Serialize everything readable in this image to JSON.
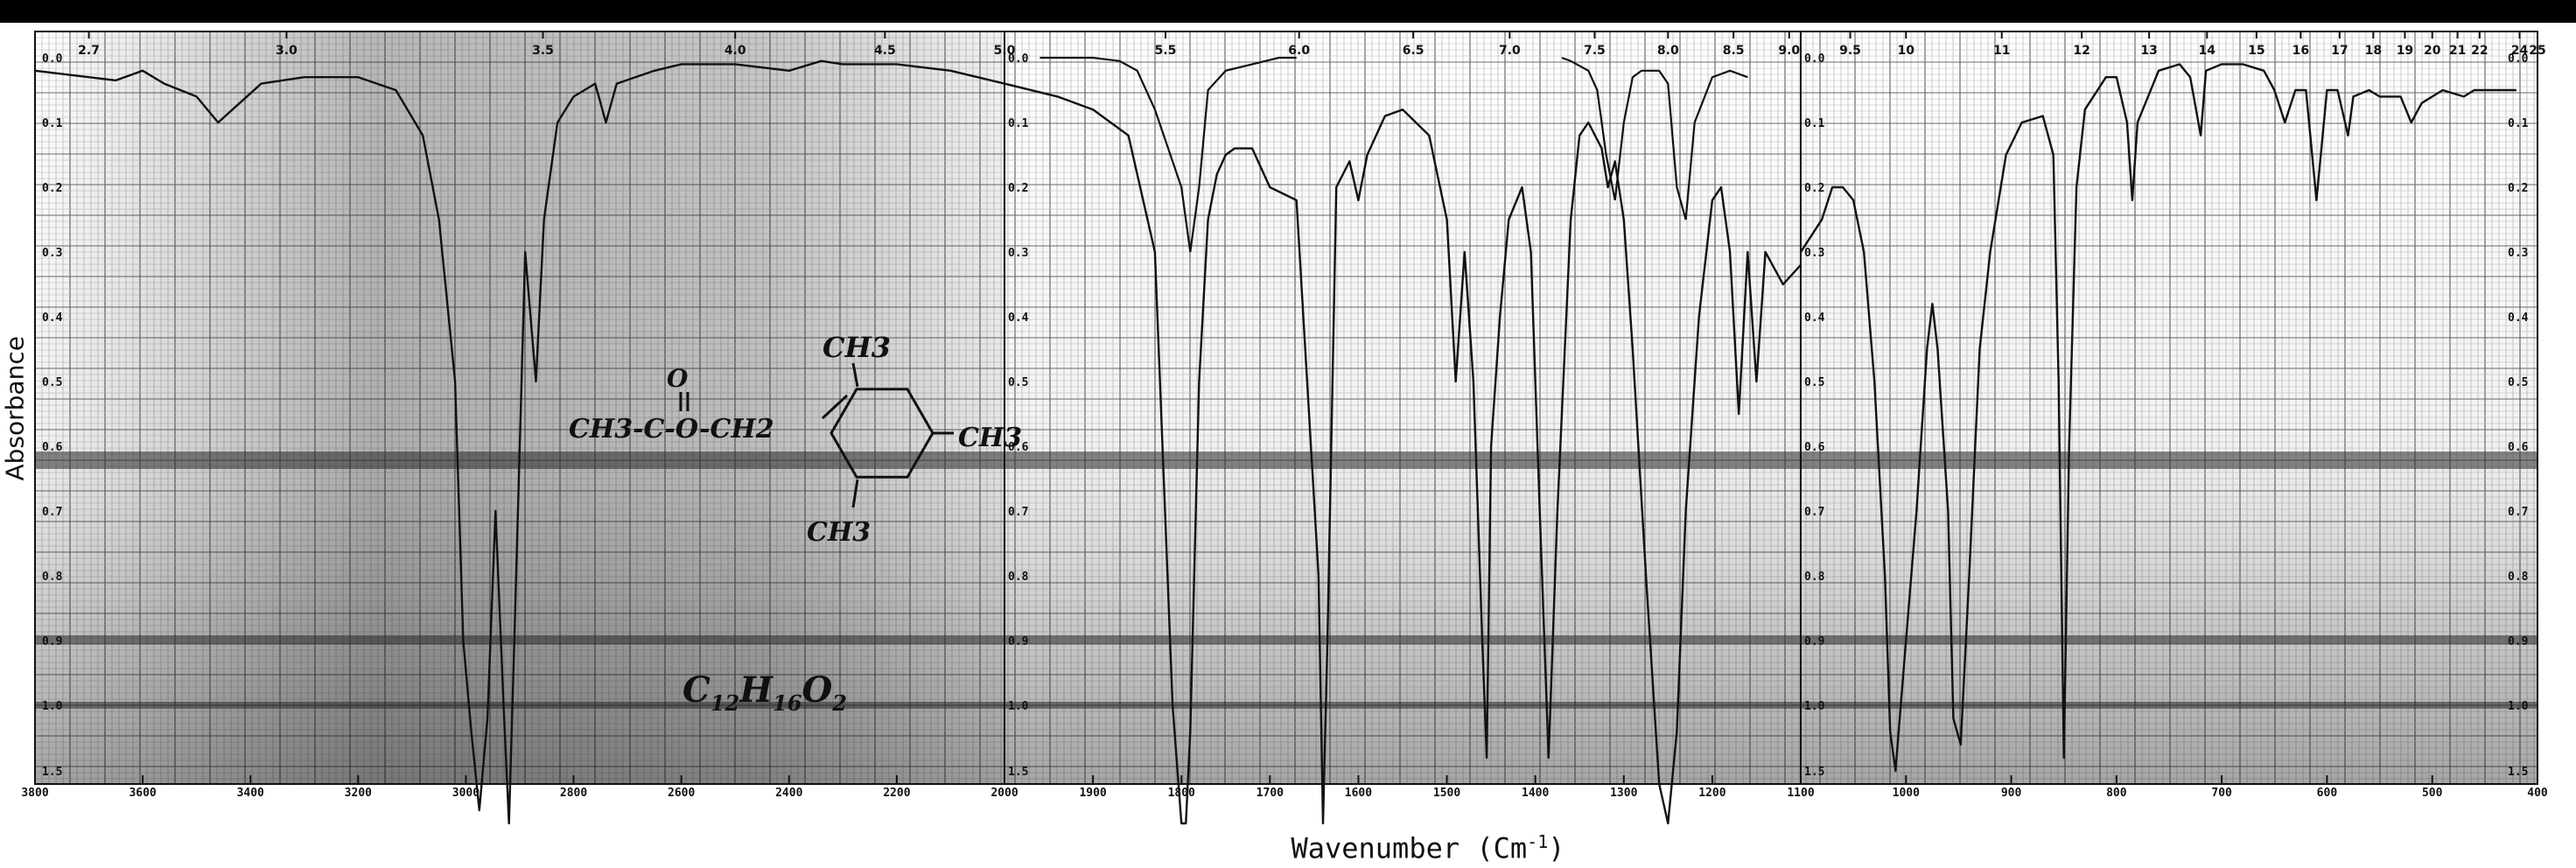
{
  "chart_data": {
    "type": "line",
    "title": "",
    "xlabel": "Wavenumber (Cm",
    "xlabel_superscript": "-1",
    "xlabel_close": ")",
    "ylabel": "Absorbance",
    "x_reversed": true,
    "panels": [
      {
        "xlim": [
          3800,
          2000
        ],
        "bottom_ticks": [
          3800,
          3600,
          3400,
          3200,
          3000,
          2800,
          2600,
          2400,
          2200,
          2000
        ],
        "top_ticks": [
          {
            "label": "2.7",
            "x": 3700
          },
          {
            "label": "3.0",
            "x": 3333
          },
          {
            "label": "3.5",
            "x": 2857
          },
          {
            "label": "4.0",
            "x": 2500
          },
          {
            "label": "4.5",
            "x": 2222
          },
          {
            "label": "5.0",
            "x": 2000
          }
        ]
      },
      {
        "xlim": [
          2000,
          1100
        ],
        "bottom_ticks": [
          1900,
          1800,
          1700,
          1600,
          1500,
          1400,
          1300,
          1200
        ],
        "top_ticks": [
          {
            "label": "5.5",
            "x": 1818
          },
          {
            "label": "6.0",
            "x": 1667
          },
          {
            "label": "6.5",
            "x": 1538
          },
          {
            "label": "7.0",
            "x": 1429
          },
          {
            "label": "7.5",
            "x": 1333
          },
          {
            "label": "8.0",
            "x": 1250
          },
          {
            "label": "8.5",
            "x": 1176
          }
        ]
      },
      {
        "xlim": [
          1100,
          400
        ],
        "bottom_ticks": [
          1100,
          1000,
          900,
          800,
          700,
          600,
          500,
          400
        ],
        "tick_labels_override": {
          "500": "500",
          "400": "400"
        },
        "top_ticks": [
          {
            "label": "9.0",
            "x": 1111
          },
          {
            "label": "9.5",
            "x": 1053
          },
          {
            "label": "10",
            "x": 1000
          },
          {
            "label": "11",
            "x": 909
          },
          {
            "label": "12",
            "x": 833
          },
          {
            "label": "13",
            "x": 769
          },
          {
            "label": "14",
            "x": 714
          },
          {
            "label": "15",
            "x": 667
          },
          {
            "label": "16",
            "x": 625
          },
          {
            "label": "17",
            "x": 588
          },
          {
            "label": "18",
            "x": 556
          },
          {
            "label": "19",
            "x": 526
          },
          {
            "label": "20",
            "x": 500
          },
          {
            "label": "21",
            "x": 476
          },
          {
            "label": "22",
            "x": 455
          },
          {
            "label": "24",
            "x": 417
          },
          {
            "label": "25",
            "x": 400
          }
        ]
      }
    ],
    "y_ticks": [
      "0.0",
      "0.1",
      "0.2",
      "0.3",
      "0.4",
      "0.5",
      "0.6",
      "0.7",
      "0.8",
      "0.9",
      "1.0",
      "1.5"
    ],
    "y_values": [
      0.0,
      0.1,
      0.2,
      0.3,
      0.4,
      0.5,
      0.6,
      0.7,
      0.8,
      0.9,
      1.0,
      1.5
    ],
    "grid": true,
    "series": [
      {
        "values": [
          [
            3800,
            0.02
          ],
          [
            3700,
            0.03
          ],
          [
            3650,
            0.035
          ],
          [
            3600,
            0.02
          ],
          [
            3560,
            0.04
          ],
          [
            3500,
            0.06
          ],
          [
            3460,
            0.1
          ],
          [
            3420,
            0.07
          ],
          [
            3380,
            0.04
          ],
          [
            3300,
            0.03
          ],
          [
            3200,
            0.03
          ],
          [
            3130,
            0.05
          ],
          [
            3080,
            0.12
          ],
          [
            3050,
            0.25
          ],
          [
            3020,
            0.5
          ],
          [
            3005,
            0.9
          ],
          [
            2990,
            1.2
          ],
          [
            2975,
            1.8
          ],
          [
            2960,
            1.1
          ],
          [
            2945,
            0.7
          ],
          [
            2930,
            1.0
          ],
          [
            2920,
            1.9
          ],
          [
            2910,
            0.9
          ],
          [
            2890,
            0.3
          ],
          [
            2870,
            0.5
          ],
          [
            2855,
            0.25
          ],
          [
            2830,
            0.1
          ],
          [
            2800,
            0.06
          ],
          [
            2760,
            0.04
          ],
          [
            2740,
            0.1
          ],
          [
            2720,
            0.04
          ],
          [
            2650,
            0.02
          ],
          [
            2600,
            0.01
          ],
          [
            2500,
            0.01
          ],
          [
            2400,
            0.02
          ],
          [
            2340,
            0.005
          ],
          [
            2300,
            0.01
          ],
          [
            2200,
            0.01
          ],
          [
            2100,
            0.02
          ],
          [
            2000,
            0.04
          ]
        ]
      },
      {
        "values": [
          [
            2000,
            0.04
          ],
          [
            1940,
            0.06
          ],
          [
            1900,
            0.08
          ],
          [
            1860,
            0.12
          ],
          [
            1830,
            0.3
          ],
          [
            1810,
            1.0
          ],
          [
            1800,
            1.9
          ],
          [
            1795,
            1.9
          ],
          [
            1790,
            1.2
          ],
          [
            1780,
            0.5
          ],
          [
            1770,
            0.25
          ],
          [
            1760,
            0.18
          ],
          [
            1750,
            0.15
          ],
          [
            1740,
            0.14
          ],
          [
            1720,
            0.14
          ],
          [
            1700,
            0.2
          ],
          [
            1670,
            0.22
          ],
          [
            1645,
            0.8
          ],
          [
            1640,
            1.9
          ],
          [
            1635,
            0.9
          ],
          [
            1625,
            0.2
          ],
          [
            1610,
            0.16
          ],
          [
            1600,
            0.22
          ],
          [
            1590,
            0.15
          ],
          [
            1570,
            0.09
          ],
          [
            1550,
            0.08
          ],
          [
            1520,
            0.12
          ],
          [
            1500,
            0.25
          ],
          [
            1490,
            0.5
          ],
          [
            1480,
            0.3
          ],
          [
            1470,
            0.5
          ],
          [
            1460,
            0.9
          ],
          [
            1455,
            1.4
          ],
          [
            1450,
            0.6
          ],
          [
            1440,
            0.4
          ],
          [
            1430,
            0.25
          ],
          [
            1415,
            0.2
          ],
          [
            1405,
            0.3
          ],
          [
            1395,
            0.7
          ],
          [
            1385,
            1.4
          ],
          [
            1375,
            0.7
          ],
          [
            1360,
            0.25
          ],
          [
            1350,
            0.12
          ],
          [
            1340,
            0.1
          ],
          [
            1325,
            0.14
          ],
          [
            1318,
            0.2
          ],
          [
            1310,
            0.16
          ],
          [
            1300,
            0.25
          ],
          [
            1290,
            0.45
          ],
          [
            1275,
            0.8
          ],
          [
            1260,
            1.6
          ],
          [
            1250,
            1.9
          ],
          [
            1240,
            1.2
          ],
          [
            1230,
            0.7
          ],
          [
            1215,
            0.4
          ],
          [
            1200,
            0.22
          ],
          [
            1190,
            0.2
          ],
          [
            1180,
            0.3
          ],
          [
            1170,
            0.55
          ],
          [
            1160,
            0.3
          ],
          [
            1150,
            0.5
          ],
          [
            1140,
            0.3
          ],
          [
            1120,
            0.35
          ],
          [
            1100,
            0.32
          ]
        ]
      },
      {
        "values": [
          [
            1100,
            0.3
          ],
          [
            1080,
            0.25
          ],
          [
            1070,
            0.2
          ],
          [
            1060,
            0.2
          ],
          [
            1050,
            0.22
          ],
          [
            1040,
            0.3
          ],
          [
            1030,
            0.5
          ],
          [
            1020,
            0.8
          ],
          [
            1015,
            1.2
          ],
          [
            1010,
            1.5
          ],
          [
            1005,
            1.0
          ],
          [
            990,
            0.7
          ],
          [
            980,
            0.45
          ],
          [
            975,
            0.38
          ],
          [
            970,
            0.45
          ],
          [
            960,
            0.7
          ],
          [
            955,
            1.1
          ],
          [
            948,
            1.3
          ],
          [
            940,
            0.8
          ],
          [
            930,
            0.45
          ],
          [
            920,
            0.3
          ],
          [
            905,
            0.15
          ],
          [
            890,
            0.1
          ],
          [
            870,
            0.09
          ],
          [
            860,
            0.15
          ],
          [
            855,
            0.5
          ],
          [
            850,
            1.4
          ],
          [
            845,
            0.6
          ],
          [
            838,
            0.2
          ],
          [
            830,
            0.08
          ],
          [
            810,
            0.03
          ],
          [
            800,
            0.03
          ],
          [
            790,
            0.1
          ],
          [
            785,
            0.22
          ],
          [
            780,
            0.1
          ],
          [
            760,
            0.02
          ],
          [
            740,
            0.01
          ],
          [
            730,
            0.03
          ],
          [
            720,
            0.12
          ],
          [
            715,
            0.02
          ],
          [
            700,
            0.01
          ],
          [
            680,
            0.01
          ],
          [
            660,
            0.02
          ],
          [
            650,
            0.05
          ],
          [
            640,
            0.1
          ],
          [
            630,
            0.05
          ],
          [
            620,
            0.05
          ],
          [
            610,
            0.22
          ],
          [
            600,
            0.05
          ],
          [
            590,
            0.05
          ],
          [
            580,
            0.12
          ],
          [
            575,
            0.06
          ],
          [
            560,
            0.05
          ],
          [
            550,
            0.06
          ],
          [
            530,
            0.06
          ],
          [
            520,
            0.1
          ],
          [
            510,
            0.07
          ],
          [
            490,
            0.05
          ],
          [
            470,
            0.06
          ],
          [
            460,
            0.05
          ],
          [
            440,
            0.05
          ],
          [
            420,
            0.05
          ]
        ]
      }
    ],
    "overlay_traces": [
      {
        "panel": 1,
        "values": [
          [
            1960,
            0.0
          ],
          [
            1900,
            0.0
          ],
          [
            1870,
            0.005
          ],
          [
            1850,
            0.02
          ],
          [
            1830,
            0.08
          ],
          [
            1800,
            0.2
          ],
          [
            1790,
            0.3
          ],
          [
            1780,
            0.2
          ],
          [
            1770,
            0.05
          ],
          [
            1750,
            0.02
          ],
          [
            1720,
            0.01
          ],
          [
            1690,
            0.0
          ],
          [
            1670,
            0.0
          ]
        ]
      },
      {
        "panel": 1,
        "values": [
          [
            1370,
            0.0
          ],
          [
            1360,
            0.005
          ],
          [
            1340,
            0.02
          ],
          [
            1330,
            0.05
          ],
          [
            1320,
            0.15
          ],
          [
            1310,
            0.22
          ],
          [
            1300,
            0.1
          ],
          [
            1290,
            0.03
          ],
          [
            1280,
            0.02
          ],
          [
            1260,
            0.02
          ],
          [
            1250,
            0.04
          ],
          [
            1240,
            0.2
          ],
          [
            1230,
            0.25
          ],
          [
            1220,
            0.1
          ],
          [
            1200,
            0.03
          ],
          [
            1180,
            0.02
          ],
          [
            1160,
            0.03
          ]
        ]
      }
    ],
    "annotations": {
      "structure_top": "CH3",
      "structure_left": "CH3-C-O-CH2",
      "structure_carbonyl": "O",
      "structure_right": "CH3",
      "structure_bottom": "CH3",
      "formula": "C12H16O2"
    },
    "colors": {
      "trace": "#111111",
      "grid_fine": "#b8b8b8",
      "grid_major": "#6a6a6a",
      "shade": "#7a7a7a",
      "band": "#2a2a2a",
      "top_bar": "#000000"
    }
  }
}
